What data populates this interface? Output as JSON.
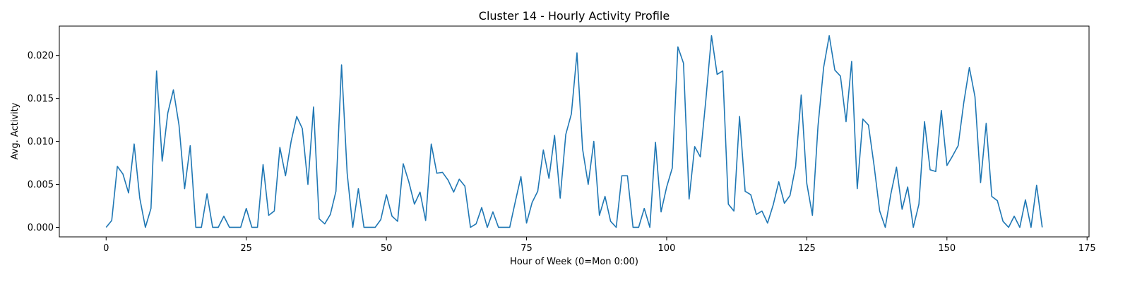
{
  "chart_data": {
    "type": "line",
    "title": "Cluster 14 - Hourly Activity Profile",
    "xlabel": "Hour of Week (0=Mon 0:00)",
    "ylabel": "Avg. Activity",
    "xlim": [
      -8.35,
      175.35
    ],
    "ylim": [
      -0.00111,
      0.02342
    ],
    "xticks": [
      0,
      25,
      50,
      75,
      100,
      125,
      150,
      175
    ],
    "xtick_labels": [
      "0",
      "25",
      "50",
      "75",
      "100",
      "125",
      "150",
      "175"
    ],
    "yticks": [
      0.0,
      0.005,
      0.01,
      0.015,
      0.02
    ],
    "ytick_labels": [
      "0.000",
      "0.005",
      "0.010",
      "0.015",
      "0.020"
    ],
    "grid": false,
    "color": "#1f77b4",
    "series": [
      {
        "x_start": 0,
        "values": [
          0.0,
          0.0008,
          0.0071,
          0.0062,
          0.004,
          0.0097,
          0.0034,
          0.0,
          0.0022,
          0.0182,
          0.0077,
          0.0133,
          0.016,
          0.0119,
          0.0045,
          0.0095,
          0.0,
          0.0,
          0.0039,
          0.0,
          0.0,
          0.0013,
          0.0,
          0.0,
          0.0,
          0.0022,
          0.0,
          0.0,
          0.0073,
          0.0014,
          0.0019,
          0.0093,
          0.006,
          0.01,
          0.0129,
          0.0115,
          0.005,
          0.014,
          0.001,
          0.0004,
          0.0015,
          0.0042,
          0.0189,
          0.0063,
          0.0,
          0.0045,
          0.0,
          0.0,
          0.0,
          0.0009,
          0.0038,
          0.0013,
          0.0007,
          0.0074,
          0.0053,
          0.0027,
          0.0041,
          0.0008,
          0.0097,
          0.0063,
          0.0064,
          0.0055,
          0.0041,
          0.0056,
          0.0048,
          0.0,
          0.0004,
          0.0023,
          0.0,
          0.0018,
          0.0,
          0.0,
          0.0,
          0.003,
          0.0059,
          0.0005,
          0.0029,
          0.0042,
          0.009,
          0.0057,
          0.0107,
          0.0034,
          0.0108,
          0.0132,
          0.0203,
          0.0091,
          0.005,
          0.01,
          0.0014,
          0.0036,
          0.0007,
          0.0,
          0.006,
          0.006,
          0.0,
          0.0,
          0.0022,
          0.0,
          0.0099,
          0.0018,
          0.0047,
          0.0069,
          0.021,
          0.0191,
          0.0033,
          0.0094,
          0.0082,
          0.0149,
          0.0223,
          0.0178,
          0.0182,
          0.0027,
          0.0019,
          0.0129,
          0.0042,
          0.0038,
          0.0015,
          0.0019,
          0.0005,
          0.0026,
          0.0053,
          0.0028,
          0.0037,
          0.0071,
          0.0154,
          0.0051,
          0.0014,
          0.0118,
          0.0186,
          0.0223,
          0.0183,
          0.0176,
          0.0123,
          0.0193,
          0.0045,
          0.0126,
          0.0119,
          0.0072,
          0.0019,
          0.0,
          0.0039,
          0.007,
          0.0021,
          0.0047,
          0.0,
          0.0027,
          0.0123,
          0.0067,
          0.0065,
          0.0136,
          0.0072,
          0.0083,
          0.0095,
          0.0145,
          0.0186,
          0.0152,
          0.0052,
          0.0121,
          0.0036,
          0.0031,
          0.0007,
          0.0,
          0.0013,
          0.0,
          0.0032,
          0.0,
          0.0049,
          0.0
        ]
      }
    ]
  }
}
